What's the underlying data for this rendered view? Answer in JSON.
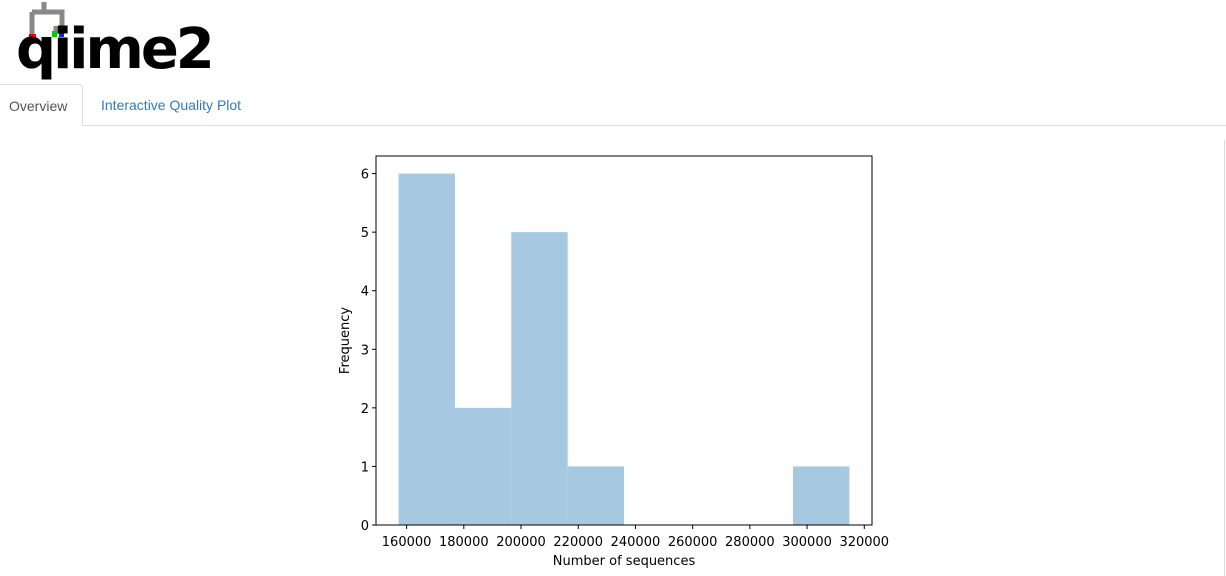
{
  "logo": "qiime2",
  "tabs": [
    "Overview",
    "Interactive Quality Plot"
  ],
  "chart_data": {
    "type": "histogram",
    "bins": [
      157200,
      176900,
      196600,
      216300,
      236000,
      255700,
      275400,
      295100,
      314800
    ],
    "values": [
      6,
      2,
      5,
      1,
      0,
      0,
      0,
      1
    ],
    "color": "#a6c8e0",
    "x_label": "Number of sequences",
    "y_label": "Frequency",
    "xlim": [
      149300,
      322700
    ],
    "ylim": [
      0,
      6.3
    ],
    "xticks": [
      160000,
      180000,
      200000,
      220000,
      240000,
      260000,
      280000,
      300000,
      320000
    ],
    "yticks": [
      0,
      1,
      2,
      3,
      4,
      5,
      6
    ]
  }
}
